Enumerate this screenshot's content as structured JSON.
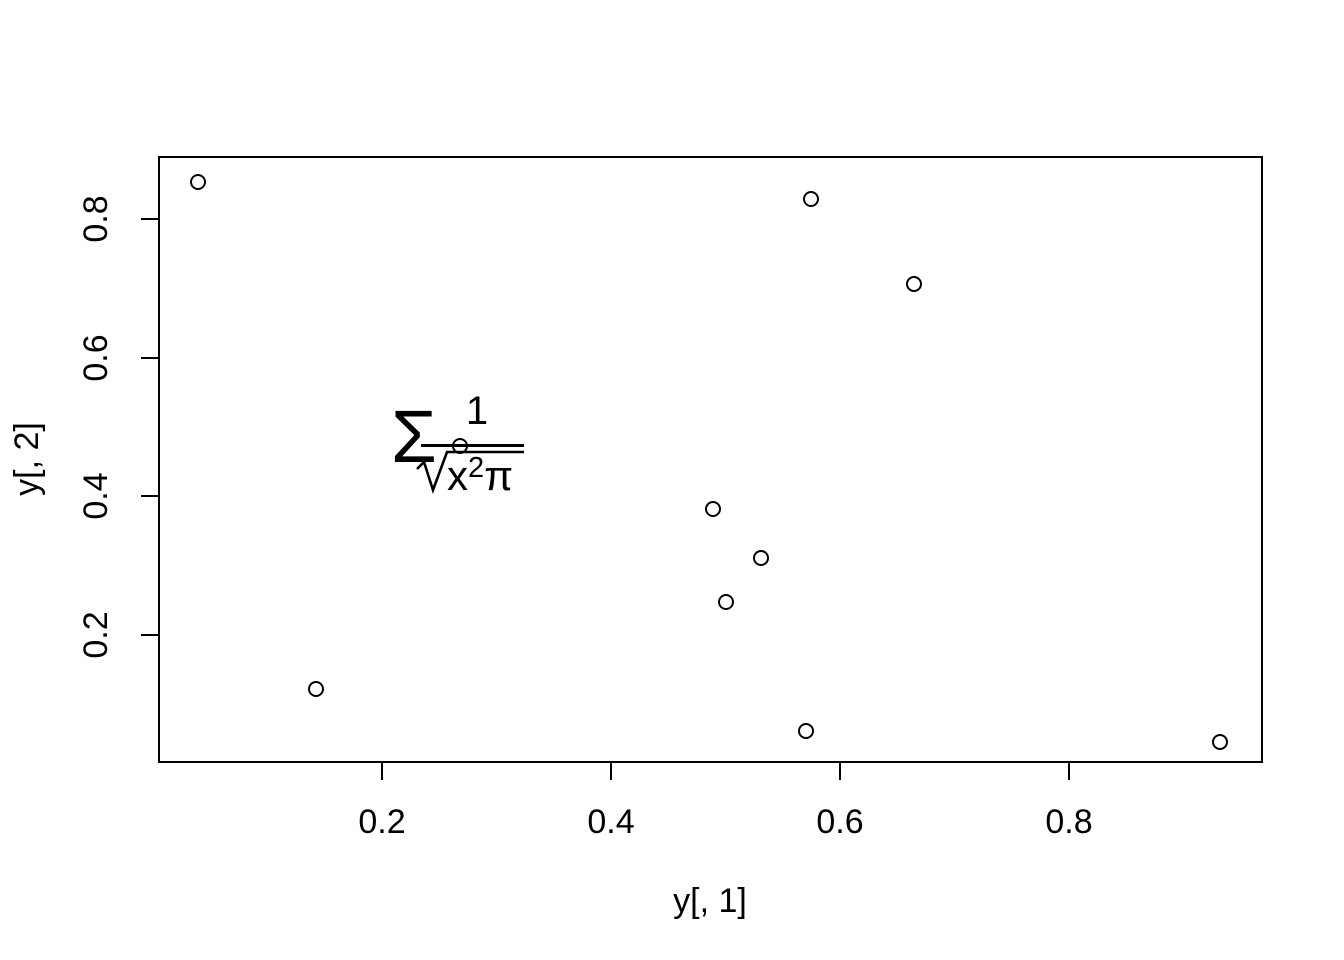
{
  "chart_data": {
    "type": "scatter",
    "title": "",
    "xlabel": "y[, 1]",
    "ylabel": "y[, 2]",
    "x_ticks": [
      0.2,
      0.4,
      0.6,
      0.8
    ],
    "y_ticks": [
      0.2,
      0.4,
      0.6,
      0.8
    ],
    "x_tick_labels": [
      "0.2",
      "0.4",
      "0.6",
      "0.8"
    ],
    "y_tick_labels": [
      "0.2",
      "0.4",
      "0.6",
      "0.8"
    ],
    "xlim": [
      0.039,
      0.934
    ],
    "ylim": [
      0.045,
      0.855
    ],
    "grid": false,
    "legend": "none",
    "point_symbol": "open-circle",
    "points": [
      {
        "x": 0.039,
        "y": 0.854
      },
      {
        "x": 0.575,
        "y": 0.829
      },
      {
        "x": 0.665,
        "y": 0.706
      },
      {
        "x": 0.268,
        "y": 0.473
      },
      {
        "x": 0.489,
        "y": 0.382
      },
      {
        "x": 0.531,
        "y": 0.311
      },
      {
        "x": 0.5,
        "y": 0.247
      },
      {
        "x": 0.142,
        "y": 0.122
      },
      {
        "x": 0.57,
        "y": 0.061
      },
      {
        "x": 0.932,
        "y": 0.045
      }
    ],
    "annotation": {
      "expression": "sum(1/sqrt(x^2*pi))",
      "x": 0.3,
      "y": 0.47
    },
    "colors": {
      "foreground": "#000000",
      "background": "#ffffff"
    }
  },
  "axis": {
    "x_label": "y[, 1]",
    "y_label": "y[, 2]"
  },
  "annotation": {
    "sigma": "Σ",
    "numerator": "1",
    "var": "x",
    "exponent": "2",
    "pi": "π"
  }
}
